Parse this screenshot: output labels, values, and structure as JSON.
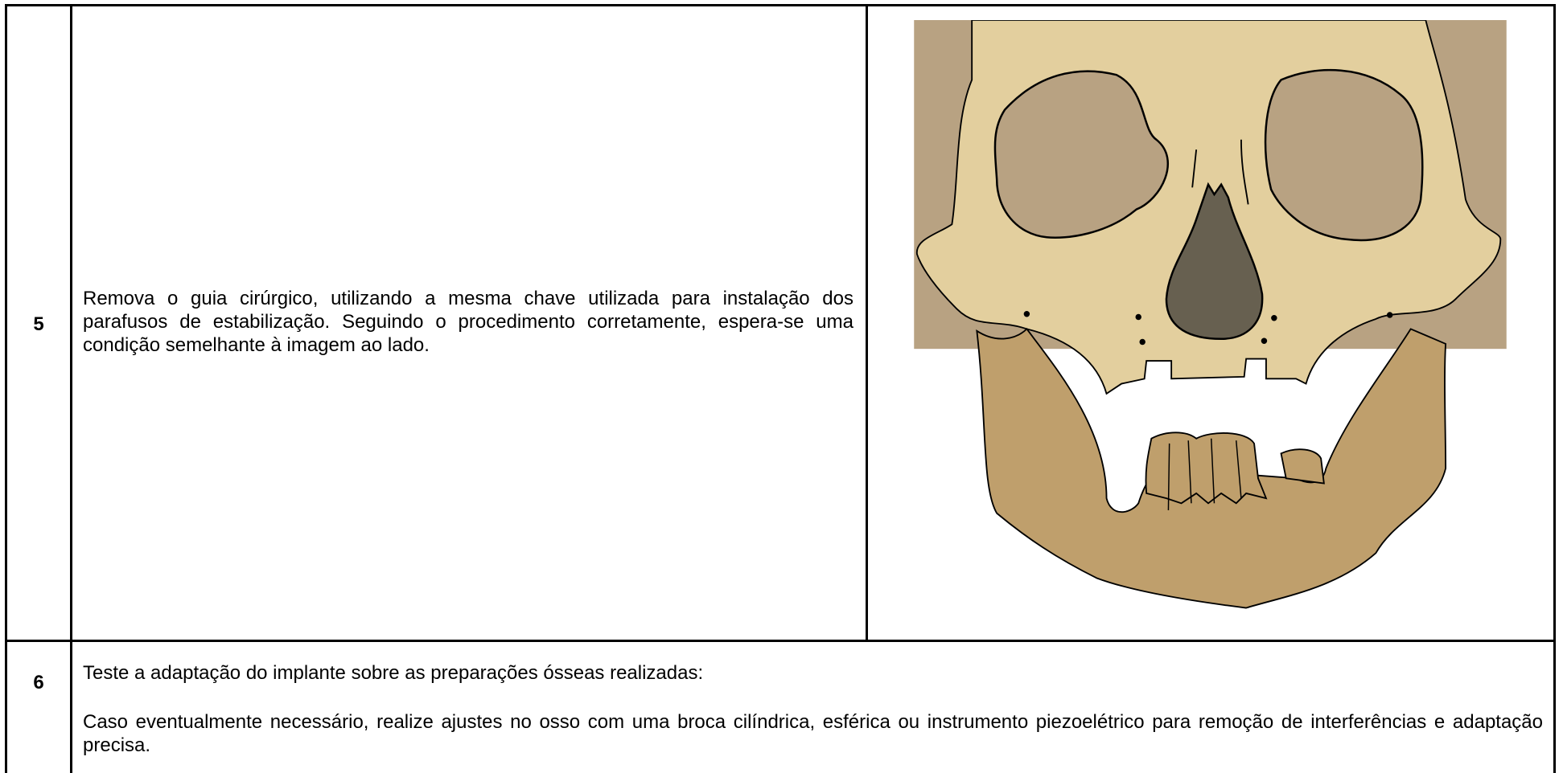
{
  "rows": [
    {
      "step": "5",
      "text": "Remova o guia cirúrgico, utilizando a mesma chave utilizada para instalação dos parafusos de estabilização. Seguindo o procedimento corretamente, espera-se uma condição semelhante à imagem ao lado."
    },
    {
      "step": "6",
      "paragraphs": [
        "Teste a adaptação do implante sobre as preparações ósseas realizadas:",
        "Caso eventualmente necessário, realize ajustes no osso com uma broca cilíndrica, esférica ou instrumento piezoelétrico  para remoção de interferências e adaptação precisa."
      ]
    }
  ]
}
